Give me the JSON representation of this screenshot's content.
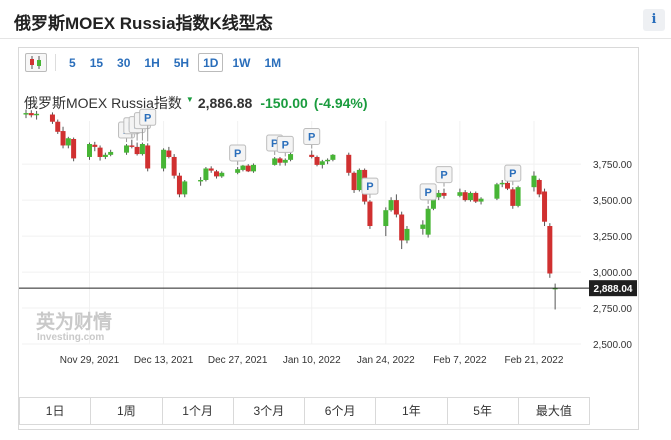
{
  "page": {
    "title": "俄罗斯MOEX Russia指数K线型态",
    "info_label": "i"
  },
  "toolbar": {
    "intervals": [
      "5",
      "15",
      "30",
      "1H",
      "5H",
      "1D",
      "1W",
      "1M"
    ],
    "active_interval": "1D"
  },
  "quote": {
    "name": "俄罗斯MOEX Russia指数",
    "last": "2,886.88",
    "change": "-150.00",
    "change_pct": "(-4.94%)"
  },
  "watermark": {
    "brand_cn": "英为财情",
    "brand_en": "Investing.com"
  },
  "range_tabs": [
    "1日",
    "1周",
    "1个月",
    "3个月",
    "6个月",
    "1年",
    "5年",
    "最大值"
  ],
  "colors": {
    "up": "#47b535",
    "down": "#d03030",
    "accent": "#2a6ebb",
    "change": "#1a9c3e",
    "last_price_tag": "#1f1f1f"
  },
  "chart_data": {
    "type": "candlestick",
    "title": "",
    "ylim": [
      2500,
      4050
    ],
    "yticks": [
      2500,
      2750,
      3000,
      3250,
      3500,
      3750
    ],
    "ytick_labels": [
      "2,500.00",
      "2,750.00",
      "3,000.00",
      "3,250.00",
      "3,500.00",
      "3,750.00"
    ],
    "xlim": [
      "2021-11-17",
      "2022-02-28"
    ],
    "xticks": [
      "2021-11-29",
      "2021-12-13",
      "2021-12-27",
      "2022-01-10",
      "2022-01-24",
      "2022-02-07",
      "2022-02-21"
    ],
    "xtick_labels": [
      "Nov 29, 2021",
      "Dec 13, 2021",
      "Dec 27, 2021",
      "Jan 10, 2022",
      "Jan 24, 2022",
      "Feb 7, 2022",
      "Feb 21, 2022"
    ],
    "last_price": 2888.04,
    "last_price_label": "2,888.04",
    "event_marker_label": "P",
    "event_markers": [
      "2021-12-06",
      "2021-12-07",
      "2021-12-08",
      "2021-12-09",
      "2021-12-10",
      "2021-12-27",
      "2022-01-03",
      "2022-01-05",
      "2022-01-10",
      "2022-01-21",
      "2022-02-01",
      "2022-02-04",
      "2022-02-17"
    ],
    "candles": [
      {
        "date": "2021-11-17",
        "open": 4095,
        "high": 4130,
        "low": 4070,
        "close": 4105
      },
      {
        "date": "2021-11-18",
        "open": 4105,
        "high": 4125,
        "low": 4075,
        "close": 4090
      },
      {
        "date": "2021-11-19",
        "open": 4090,
        "high": 4120,
        "low": 4060,
        "close": 4100
      },
      {
        "date": "2021-11-22",
        "open": 4095,
        "high": 4110,
        "low": 4030,
        "close": 4045
      },
      {
        "date": "2021-11-23",
        "open": 4045,
        "high": 4060,
        "low": 3960,
        "close": 3975
      },
      {
        "date": "2021-11-24",
        "open": 3980,
        "high": 4010,
        "low": 3860,
        "close": 3880
      },
      {
        "date": "2021-11-25",
        "open": 3880,
        "high": 3940,
        "low": 3860,
        "close": 3930
      },
      {
        "date": "2021-11-26",
        "open": 3925,
        "high": 3935,
        "low": 3770,
        "close": 3790
      },
      {
        "date": "2021-11-29",
        "open": 3800,
        "high": 3900,
        "low": 3780,
        "close": 3890
      },
      {
        "date": "2021-11-30",
        "open": 3885,
        "high": 3905,
        "low": 3840,
        "close": 3870
      },
      {
        "date": "2021-12-01",
        "open": 3865,
        "high": 3880,
        "low": 3775,
        "close": 3800
      },
      {
        "date": "2021-12-02",
        "open": 3800,
        "high": 3830,
        "low": 3785,
        "close": 3815
      },
      {
        "date": "2021-12-03",
        "open": 3815,
        "high": 3850,
        "low": 3805,
        "close": 3835
      },
      {
        "date": "2021-12-06",
        "open": 3830,
        "high": 3890,
        "low": 3815,
        "close": 3880
      },
      {
        "date": "2021-12-07",
        "open": 3880,
        "high": 3920,
        "low": 3860,
        "close": 3870
      },
      {
        "date": "2021-12-08",
        "open": 3870,
        "high": 3900,
        "low": 3810,
        "close": 3820
      },
      {
        "date": "2021-12-09",
        "open": 3820,
        "high": 3900,
        "low": 3810,
        "close": 3890
      },
      {
        "date": "2021-12-10",
        "open": 3880,
        "high": 3895,
        "low": 3700,
        "close": 3720
      },
      {
        "date": "2021-12-13",
        "open": 3720,
        "high": 3860,
        "low": 3700,
        "close": 3850
      },
      {
        "date": "2021-12-14",
        "open": 3845,
        "high": 3870,
        "low": 3790,
        "close": 3800
      },
      {
        "date": "2021-12-15",
        "open": 3800,
        "high": 3820,
        "low": 3650,
        "close": 3670
      },
      {
        "date": "2021-12-16",
        "open": 3670,
        "high": 3690,
        "low": 3520,
        "close": 3540
      },
      {
        "date": "2021-12-17",
        "open": 3540,
        "high": 3640,
        "low": 3520,
        "close": 3630
      },
      {
        "date": "2021-12-20",
        "open": 3630,
        "high": 3660,
        "low": 3600,
        "close": 3640
      },
      {
        "date": "2021-12-21",
        "open": 3640,
        "high": 3730,
        "low": 3630,
        "close": 3720
      },
      {
        "date": "2021-12-22",
        "open": 3720,
        "high": 3735,
        "low": 3690,
        "close": 3705
      },
      {
        "date": "2021-12-23",
        "open": 3700,
        "high": 3710,
        "low": 3650,
        "close": 3665
      },
      {
        "date": "2021-12-24",
        "open": 3665,
        "high": 3700,
        "low": 3655,
        "close": 3690
      },
      {
        "date": "2021-12-27",
        "open": 3690,
        "high": 3730,
        "low": 3680,
        "close": 3715
      },
      {
        "date": "2021-12-28",
        "open": 3710,
        "high": 3745,
        "low": 3700,
        "close": 3740
      },
      {
        "date": "2021-12-29",
        "open": 3740,
        "high": 3750,
        "low": 3695,
        "close": 3700
      },
      {
        "date": "2021-12-30",
        "open": 3700,
        "high": 3755,
        "low": 3690,
        "close": 3745
      },
      {
        "date": "2022-01-03",
        "open": 3745,
        "high": 3800,
        "low": 3740,
        "close": 3790
      },
      {
        "date": "2022-01-04",
        "open": 3790,
        "high": 3800,
        "low": 3740,
        "close": 3760
      },
      {
        "date": "2022-01-05",
        "open": 3760,
        "high": 3790,
        "low": 3740,
        "close": 3780
      },
      {
        "date": "2022-01-06",
        "open": 3780,
        "high": 3830,
        "low": 3770,
        "close": 3820
      },
      {
        "date": "2022-01-10",
        "open": 3815,
        "high": 3845,
        "low": 3790,
        "close": 3800
      },
      {
        "date": "2022-01-11",
        "open": 3800,
        "high": 3810,
        "low": 3735,
        "close": 3745
      },
      {
        "date": "2022-01-12",
        "open": 3745,
        "high": 3780,
        "low": 3720,
        "close": 3770
      },
      {
        "date": "2022-01-13",
        "open": 3770,
        "high": 3790,
        "low": 3750,
        "close": 3780
      },
      {
        "date": "2022-01-14",
        "open": 3780,
        "high": 3820,
        "low": 3770,
        "close": 3815
      },
      {
        "date": "2022-01-17",
        "open": 3815,
        "high": 3830,
        "low": 3670,
        "close": 3690
      },
      {
        "date": "2022-01-18",
        "open": 3690,
        "high": 3700,
        "low": 3550,
        "close": 3570
      },
      {
        "date": "2022-01-19",
        "open": 3570,
        "high": 3720,
        "low": 3560,
        "close": 3710
      },
      {
        "date": "2022-01-20",
        "open": 3710,
        "high": 3720,
        "low": 3470,
        "close": 3490
      },
      {
        "date": "2022-01-21",
        "open": 3490,
        "high": 3500,
        "low": 3300,
        "close": 3320
      },
      {
        "date": "2022-01-24",
        "open": 3320,
        "high": 3450,
        "low": 3250,
        "close": 3430
      },
      {
        "date": "2022-01-25",
        "open": 3430,
        "high": 3520,
        "low": 3420,
        "close": 3500
      },
      {
        "date": "2022-01-26",
        "open": 3500,
        "high": 3540,
        "low": 3380,
        "close": 3400
      },
      {
        "date": "2022-01-27",
        "open": 3400,
        "high": 3420,
        "low": 3160,
        "close": 3220
      },
      {
        "date": "2022-01-28",
        "open": 3220,
        "high": 3320,
        "low": 3200,
        "close": 3300
      },
      {
        "date": "2022-01-31",
        "open": 3300,
        "high": 3360,
        "low": 3260,
        "close": 3330
      },
      {
        "date": "2022-02-01",
        "open": 3260,
        "high": 3460,
        "low": 3240,
        "close": 3440
      },
      {
        "date": "2022-02-02",
        "open": 3440,
        "high": 3540,
        "low": 3430,
        "close": 3520
      },
      {
        "date": "2022-02-03",
        "open": 3520,
        "high": 3570,
        "low": 3500,
        "close": 3550
      },
      {
        "date": "2022-02-04",
        "open": 3550,
        "high": 3580,
        "low": 3510,
        "close": 3530
      },
      {
        "date": "2022-02-07",
        "open": 3530,
        "high": 3580,
        "low": 3520,
        "close": 3555
      },
      {
        "date": "2022-02-08",
        "open": 3555,
        "high": 3570,
        "low": 3490,
        "close": 3500
      },
      {
        "date": "2022-02-09",
        "open": 3500,
        "high": 3560,
        "low": 3490,
        "close": 3550
      },
      {
        "date": "2022-02-10",
        "open": 3550,
        "high": 3560,
        "low": 3480,
        "close": 3490
      },
      {
        "date": "2022-02-11",
        "open": 3490,
        "high": 3520,
        "low": 3470,
        "close": 3510
      },
      {
        "date": "2022-02-14",
        "open": 3510,
        "high": 3620,
        "low": 3500,
        "close": 3610
      },
      {
        "date": "2022-02-15",
        "open": 3610,
        "high": 3640,
        "low": 3590,
        "close": 3620
      },
      {
        "date": "2022-02-16",
        "open": 3620,
        "high": 3630,
        "low": 3570,
        "close": 3580
      },
      {
        "date": "2022-02-17",
        "open": 3575,
        "high": 3590,
        "low": 3440,
        "close": 3460
      },
      {
        "date": "2022-02-18",
        "open": 3460,
        "high": 3600,
        "low": 3450,
        "close": 3590
      },
      {
        "date": "2022-02-21",
        "open": 3590,
        "high": 3700,
        "low": 3560,
        "close": 3670
      },
      {
        "date": "2022-02-22",
        "open": 3640,
        "high": 3650,
        "low": 3520,
        "close": 3540
      },
      {
        "date": "2022-02-23",
        "open": 3560,
        "high": 3580,
        "low": 3320,
        "close": 3350
      },
      {
        "date": "2022-02-24",
        "open": 3320,
        "high": 3340,
        "low": 2960,
        "close": 2990
      },
      {
        "date": "2022-02-25",
        "open": 2880,
        "high": 2920,
        "low": 2740,
        "close": 2888
      }
    ]
  }
}
